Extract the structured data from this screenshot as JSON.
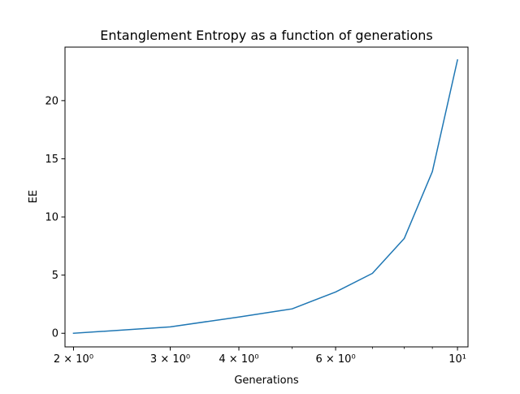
{
  "chart_data": {
    "type": "line",
    "title": "Entanglement Entropy as a function of generations",
    "xlabel": "Generations",
    "ylabel": "EE",
    "x_scale": "log",
    "xlim": [
      1.93,
      10.45
    ],
    "ylim": [
      -1.17,
      24.6
    ],
    "grid": false,
    "legend": "none",
    "x_ticks": [
      {
        "value": 2,
        "label": "2 × 10⁰"
      },
      {
        "value": 3,
        "label": "3 × 10⁰"
      },
      {
        "value": 4,
        "label": "4 × 10⁰"
      },
      {
        "value": 6,
        "label": "6 × 10⁰"
      },
      {
        "value": 10,
        "label": "10¹"
      }
    ],
    "x_minor_ticks": [
      5,
      7,
      8,
      9
    ],
    "y_ticks": [
      {
        "value": 0,
        "label": "0"
      },
      {
        "value": 5,
        "label": "5"
      },
      {
        "value": 10,
        "label": "10"
      },
      {
        "value": 15,
        "label": "15"
      },
      {
        "value": 20,
        "label": "20"
      }
    ],
    "series": [
      {
        "color": "#1f77b4",
        "x": [
          2,
          3,
          4,
          5,
          6,
          7,
          8,
          9,
          10
        ],
        "y": [
          0.0,
          0.55,
          1.4,
          2.1,
          3.55,
          5.15,
          8.15,
          13.9,
          23.5
        ]
      }
    ]
  }
}
